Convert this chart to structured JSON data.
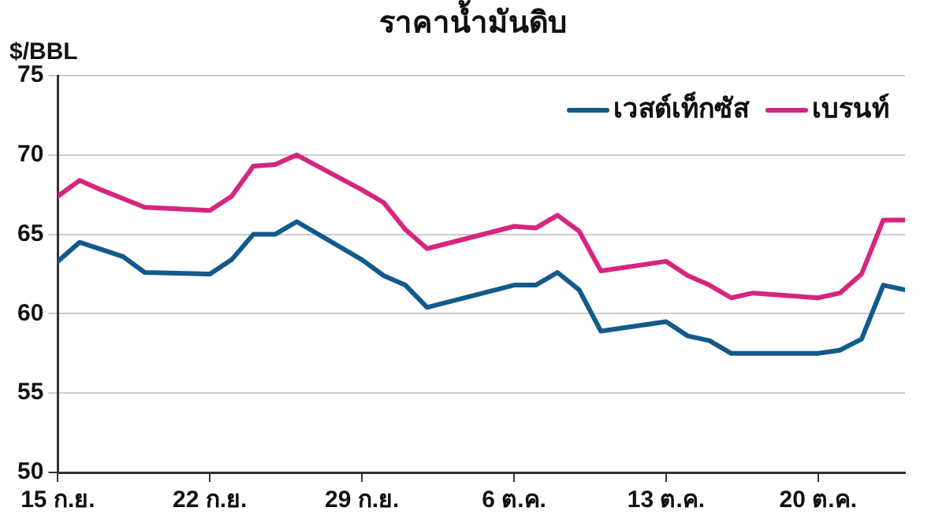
{
  "chart_data": {
    "type": "line",
    "title": "ราคาน้ำมันดิบ",
    "ylabel": "$/BBL",
    "xlim": [
      "--09-15",
      "--10-24"
    ],
    "ylim": [
      50,
      75
    ],
    "yticks": [
      50,
      55,
      60,
      65,
      70,
      75
    ],
    "xticks": [
      {
        "value": "--09-15",
        "label": "15 ก.ย."
      },
      {
        "value": "--09-22",
        "label": "22 ก.ย."
      },
      {
        "value": "--09-29",
        "label": "29 ก.ย."
      },
      {
        "value": "--10-06",
        "label": "6 ต.ค."
      },
      {
        "value": "--10-13",
        "label": "13 ต.ค."
      },
      {
        "value": "--10-20",
        "label": "20 ต.ค."
      }
    ],
    "grid": "y",
    "legend": "top right",
    "marker": "none",
    "line_style": "solid",
    "series": [
      {
        "name": "เวสต์เท็กซัส",
        "color": "#135a8a",
        "x": [
          "--09-15",
          "--09-16",
          "--09-18",
          "--09-19",
          "--09-22",
          "--09-23",
          "--09-24",
          "--09-25",
          "--09-26",
          "--09-29",
          "--09-30",
          "--10-01",
          "--10-02",
          "--10-06",
          "--10-07",
          "--10-08",
          "--10-09",
          "--10-10",
          "--10-13",
          "--10-14",
          "--10-15",
          "--10-16",
          "--10-20",
          "--10-21",
          "--10-22",
          "--10-23",
          "--10-24"
        ],
        "values": [
          63.3,
          64.5,
          63.6,
          62.6,
          62.5,
          63.4,
          65.0,
          65.0,
          65.8,
          63.4,
          62.4,
          61.8,
          60.4,
          61.8,
          61.8,
          62.6,
          61.5,
          58.9,
          59.5,
          58.6,
          58.3,
          57.5,
          57.5,
          57.7,
          58.4,
          61.8,
          61.5
        ]
      },
      {
        "name": "เบรนท์",
        "color": "#d6257f",
        "x": [
          "--09-15",
          "--09-16",
          "--09-17",
          "--09-19",
          "--09-22",
          "--09-23",
          "--09-24",
          "--09-25",
          "--09-26",
          "--09-29",
          "--09-30",
          "--10-01",
          "--10-02",
          "--10-06",
          "--10-07",
          "--10-08",
          "--10-09",
          "--10-10",
          "--10-13",
          "--10-14",
          "--10-15",
          "--10-16",
          "--10-17",
          "--10-20",
          "--10-21",
          "--10-22",
          "--10-23",
          "--10-24"
        ],
        "values": [
          67.4,
          68.4,
          67.8,
          66.7,
          66.5,
          67.4,
          69.3,
          69.4,
          70.0,
          67.8,
          67.0,
          65.3,
          64.1,
          65.5,
          65.4,
          66.2,
          65.2,
          62.7,
          63.3,
          62.4,
          61.8,
          61.0,
          61.3,
          61.0,
          61.3,
          62.5,
          65.9,
          65.9
        ]
      }
    ]
  }
}
